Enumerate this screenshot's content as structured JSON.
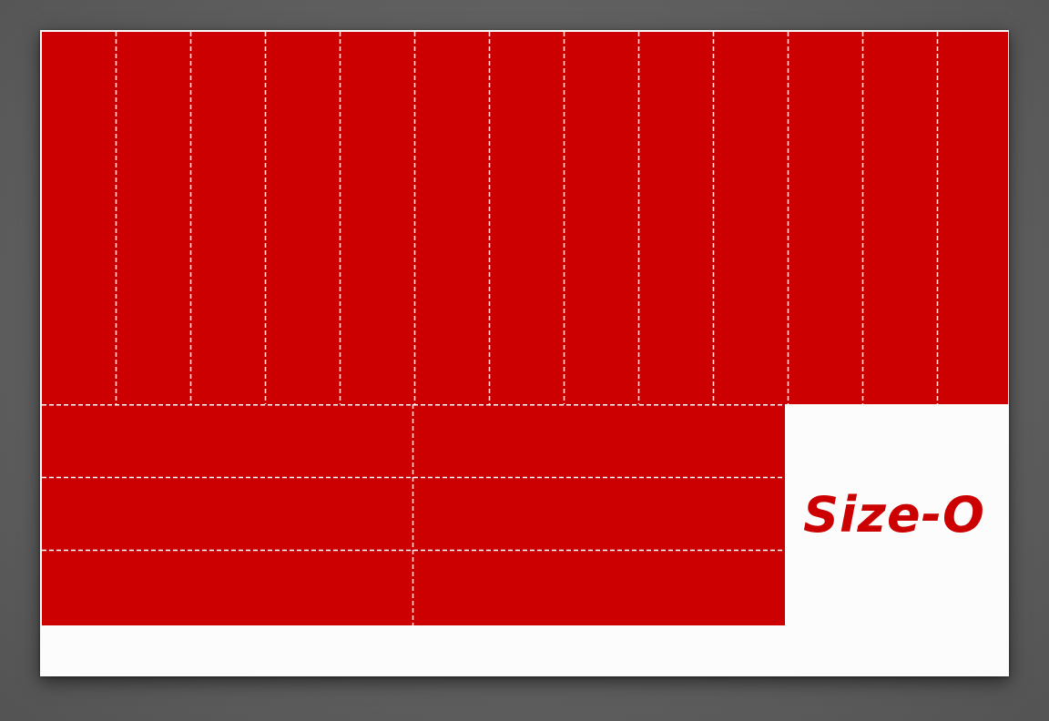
{
  "colors": {
    "fill": "#cc0000",
    "cut_line": "#ffffff",
    "sheet": "#fcfcfc",
    "background": "#666666"
  },
  "layout": {
    "vertical_strip_count": 13,
    "horizontal_band_columns": 2,
    "horizontal_band_rows": 3
  },
  "label": {
    "text": "Size-O"
  }
}
